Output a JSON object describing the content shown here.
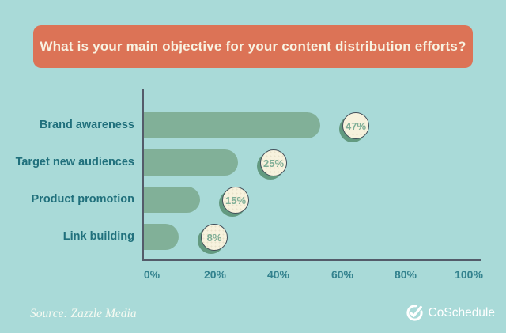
{
  "title": {
    "text": "What is your main objective for your content distribution efforts?"
  },
  "chart_data": {
    "type": "bar",
    "orientation": "horizontal",
    "title": "What is your main objective for your content distribution efforts?",
    "categories": [
      "Brand awareness",
      "Target new audiences",
      "Product promotion",
      "Link building"
    ],
    "values": [
      47,
      25,
      15,
      8
    ],
    "value_labels": [
      "47%",
      "25%",
      "15%",
      "8%"
    ],
    "x_ticks": [
      {
        "value": 0,
        "label": "0%"
      },
      {
        "value": 20,
        "label": "20%"
      },
      {
        "value": 40,
        "label": "40%"
      },
      {
        "value": 60,
        "label": "60%"
      },
      {
        "value": 80,
        "label": "80%"
      },
      {
        "value": 100,
        "label": "100%"
      }
    ],
    "xlim": [
      0,
      100
    ],
    "xlabel": "",
    "ylabel": "",
    "grid": false,
    "legend": "none"
  },
  "footer": {
    "source": "Source: Zazzle Media",
    "brand": "CoSchedule"
  },
  "colors": {
    "background": "#A9DAD8",
    "banner": "#DC7356",
    "banner_text": "#F8F2E1",
    "bar": "#81B098",
    "category_text": "#20707C",
    "tick_text": "#33828E",
    "axis": "#545B6A",
    "badge_fill": "#F7F2DD",
    "badge_border": "#424E59",
    "badge_text": "#7FAE96",
    "badge_shadow": "#639A80",
    "footer_text": "#F6FAF2"
  }
}
